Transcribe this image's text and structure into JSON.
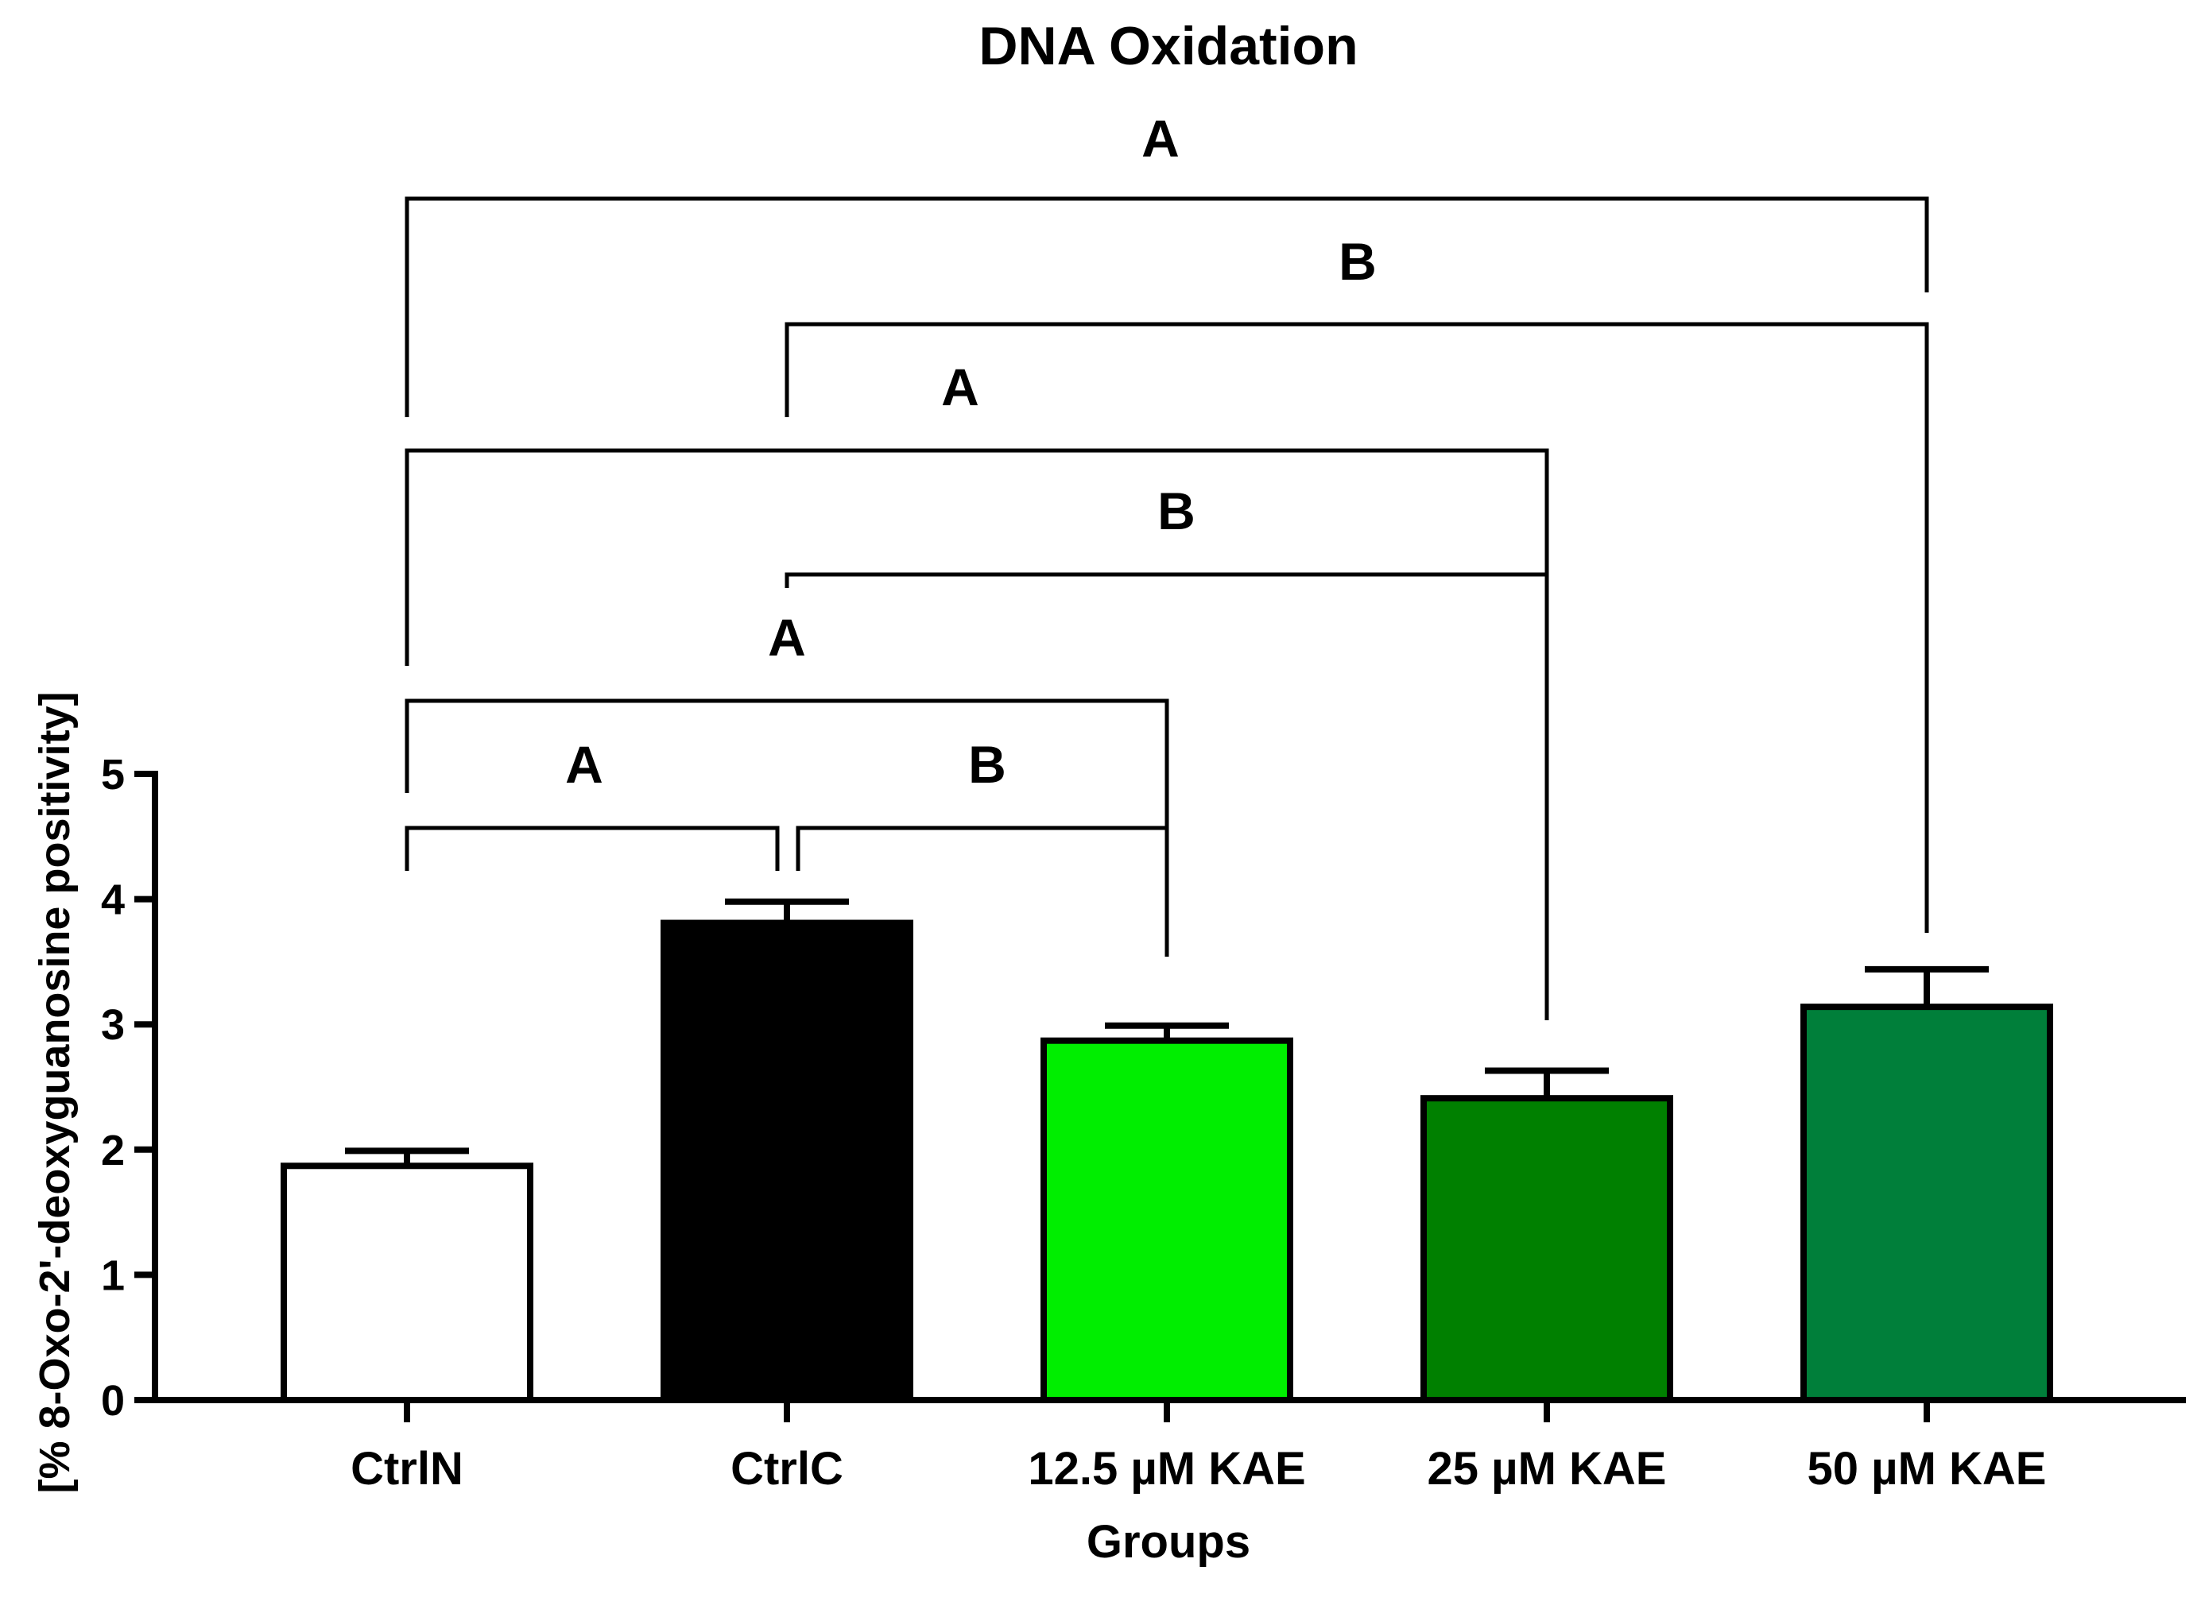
{
  "chart_data": {
    "type": "bar",
    "title": "DNA Oxidation",
    "xlabel": "Groups",
    "ylabel": "[% 8-Oxo-2'-deoxyguanosine positivity]",
    "ylim": [
      0,
      5
    ],
    "yticks": [
      0,
      1,
      2,
      3,
      4,
      5
    ],
    "grid": false,
    "categories": [
      "CtrlN",
      "CtrlC",
      "12.5 µM KAE",
      "25 µM KAE",
      "50 µM KAE"
    ],
    "values": [
      1.87,
      3.81,
      2.87,
      2.41,
      3.14
    ],
    "errors": [
      0.12,
      0.17,
      0.12,
      0.22,
      0.3
    ],
    "colors": [
      "#ffffff",
      "#000000",
      "#00ee00",
      "#008000",
      "#007f3a"
    ],
    "comparisons": [
      {
        "from": 0,
        "to": 1,
        "label": "A"
      },
      {
        "from": 1,
        "to": 2,
        "label": "B"
      },
      {
        "from": 0,
        "to": 2,
        "label": "A"
      },
      {
        "from": 1,
        "to": 3,
        "label": "B"
      },
      {
        "from": 0,
        "to": 3,
        "label": "A"
      },
      {
        "from": 1,
        "to": 4,
        "label": "B"
      },
      {
        "from": 0,
        "to": 4,
        "label": "A"
      }
    ]
  }
}
